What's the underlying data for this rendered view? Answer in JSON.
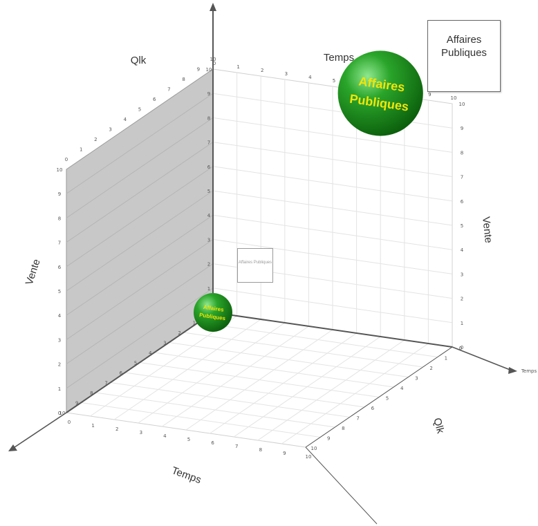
{
  "chart_data": {
    "type": "bubble3d",
    "axes": {
      "x": {
        "label": "Temps",
        "range": [
          0,
          10
        ]
      },
      "y": {
        "label": "Vente",
        "range": [
          0,
          10
        ]
      },
      "z": {
        "label": "Qlk",
        "range": [
          0,
          10
        ]
      }
    },
    "series": [
      {
        "name": "Affaires Publiques",
        "points": [
          {
            "temps": 0,
            "vente": 0,
            "qlk": 0,
            "size": 1,
            "label": "Affaires Publiques"
          },
          {
            "temps": 7,
            "vente": 10,
            "qlk": 0,
            "size": 2.2,
            "label": "Affaires Publiques"
          }
        ]
      }
    ],
    "callouts": [
      {
        "text_lines": [
          "Affaires",
          "Publiques"
        ]
      }
    ],
    "colors": {
      "bubble": "#1f8f1f",
      "bubble_highlight": "#7fe07f",
      "label": "#f2e40a",
      "back_wall": "#c8c8c8",
      "grid": "#e3e3e3",
      "axis": "#555555"
    },
    "grid": true
  }
}
